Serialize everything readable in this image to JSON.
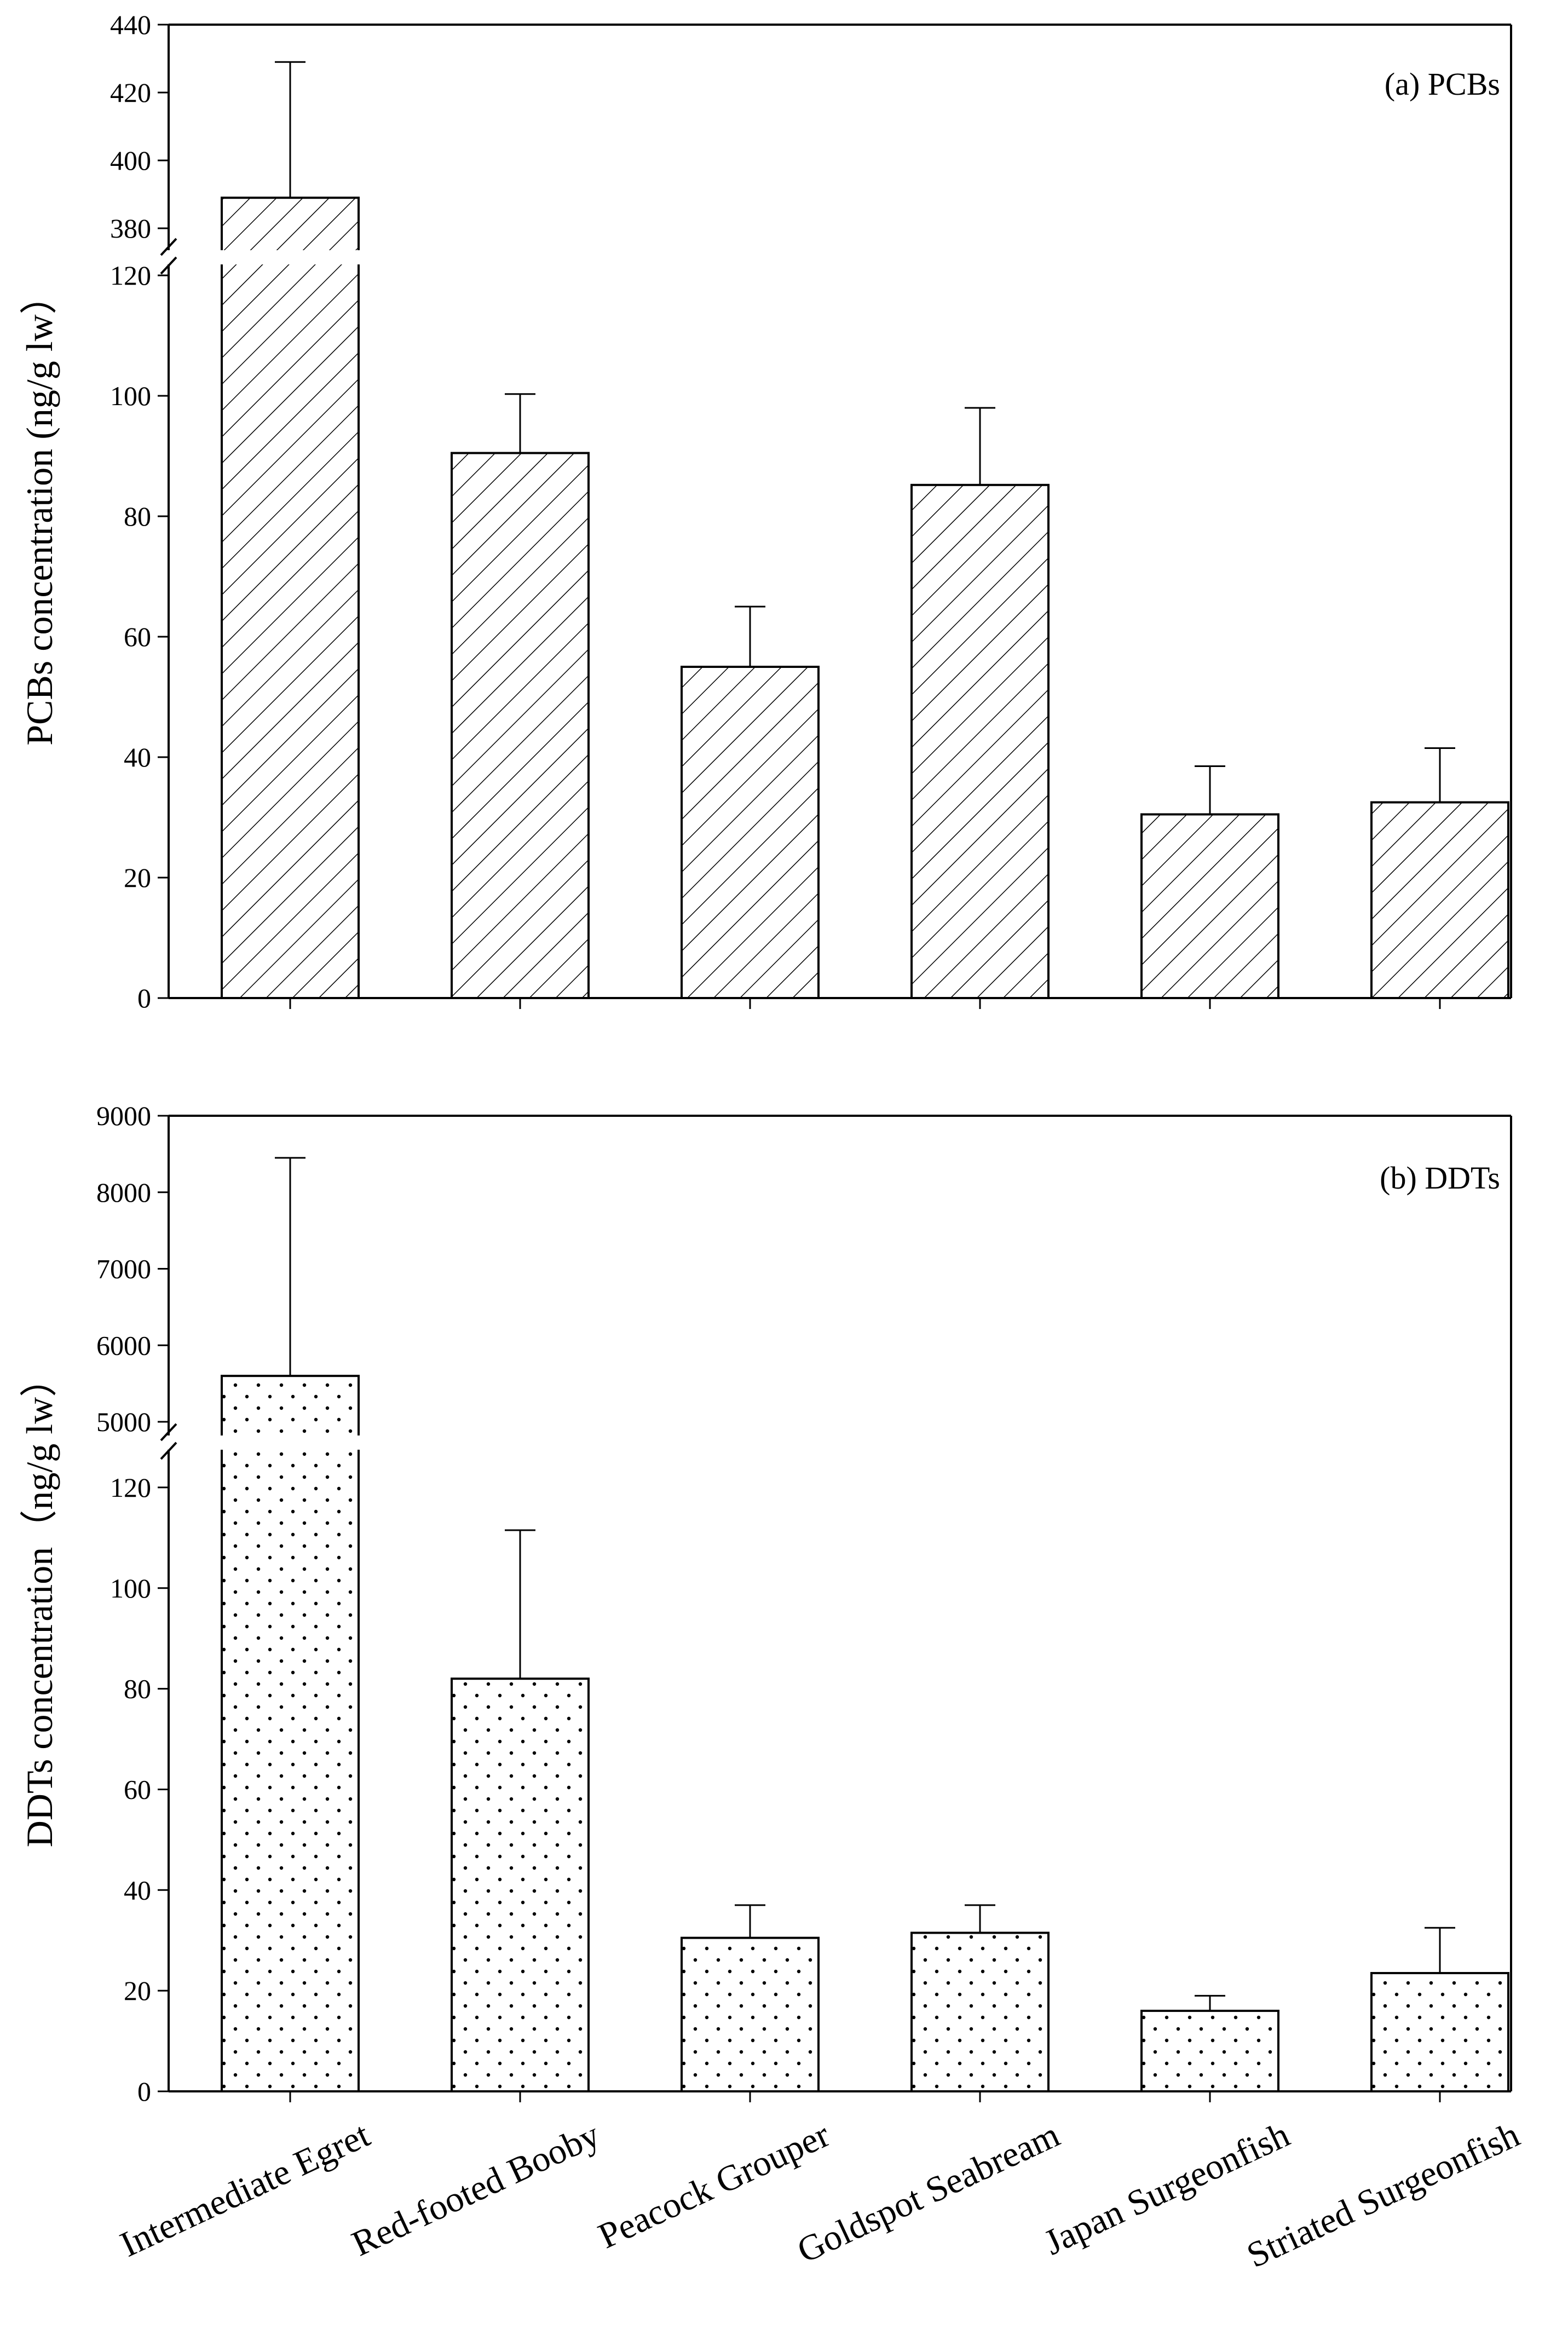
{
  "chart_data": [
    {
      "type": "bar",
      "panel_label": "(a) PCBs",
      "ylabel": "PCBs concentration (ng/g lw）",
      "categories": [
        "Intermediate Egret",
        "Red-footed Booby",
        "Peacock Grouper",
        "Goldspot Seabream",
        "Japan Surgeonfish",
        "Striated Surgeonfish"
      ],
      "series": [
        {
          "name": "PCBs",
          "pattern": "diagonal-hatch",
          "values": [
            389,
            90.5,
            55,
            85.2,
            30.5,
            32.5
          ],
          "error_upper": [
            429,
            100.3,
            65,
            98,
            38.5,
            41.5
          ]
        }
      ],
      "axis_break": {
        "lower_range": [
          0,
          125
        ],
        "upper_range": [
          375,
          440
        ],
        "lower_ticks": [
          0,
          20,
          40,
          60,
          80,
          100,
          120
        ],
        "upper_ticks": [
          380,
          400,
          420,
          440
        ]
      },
      "tick_labels_lower": [
        "0",
        "20",
        "40",
        "60",
        "80",
        "100",
        "120"
      ],
      "tick_labels_upper": [
        "380",
        "400",
        "420",
        "440"
      ]
    },
    {
      "type": "bar",
      "panel_label": "(b) DDTs",
      "ylabel": "DDTs concentration（ng/g lw）",
      "categories": [
        "Intermediate Egret",
        "Red-footed Booby",
        "Peacock Grouper",
        "Goldspot Seabream",
        "Japan Surgeonfish",
        "Striated Surgeonfish"
      ],
      "series": [
        {
          "name": "DDTs",
          "pattern": "dots",
          "values": [
            5600,
            82,
            30.5,
            31.5,
            16,
            23.5
          ],
          "error_upper": [
            8450,
            111.5,
            37,
            37,
            19,
            32.5
          ]
        }
      ],
      "axis_break": {
        "lower_range": [
          0,
          130
        ],
        "upper_range": [
          4800,
          9000
        ],
        "lower_ticks": [
          0,
          20,
          40,
          60,
          80,
          100,
          120
        ],
        "upper_ticks": [
          5000,
          6000,
          7000,
          8000,
          9000
        ]
      },
      "tick_labels_lower": [
        "0",
        "20",
        "40",
        "60",
        "80",
        "100",
        "120"
      ],
      "tick_labels_upper": [
        "5000",
        "6000",
        "7000",
        "8000",
        "9000"
      ]
    }
  ]
}
